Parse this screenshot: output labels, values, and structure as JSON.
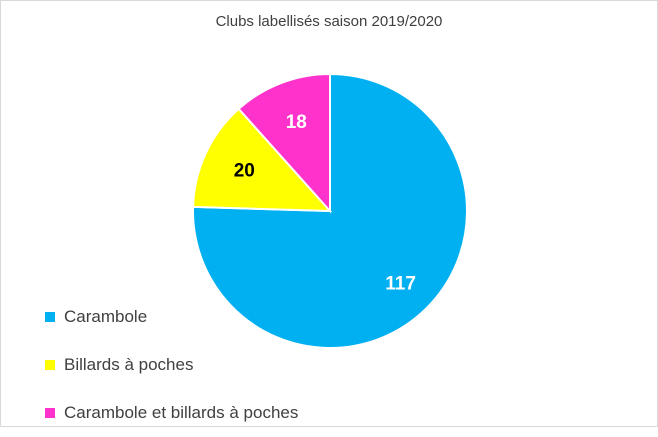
{
  "chart_data": {
    "type": "pie",
    "title": "Clubs labellisés saison 2019/2020",
    "slices": [
      {
        "label": "Carambole",
        "value": 117,
        "color": "#00b0f0",
        "label_color": "#ffffff"
      },
      {
        "label": "Billards à poches",
        "value": 20,
        "color": "#ffff00",
        "label_color": "#000000"
      },
      {
        "label": "Carambole et billards à poches",
        "value": 18,
        "color": "#ff33cc",
        "label_color": "#ffffff"
      }
    ],
    "start_angle_deg": 0,
    "direction": "clockwise",
    "legend_position": "bottom-left",
    "data_labels": true
  }
}
